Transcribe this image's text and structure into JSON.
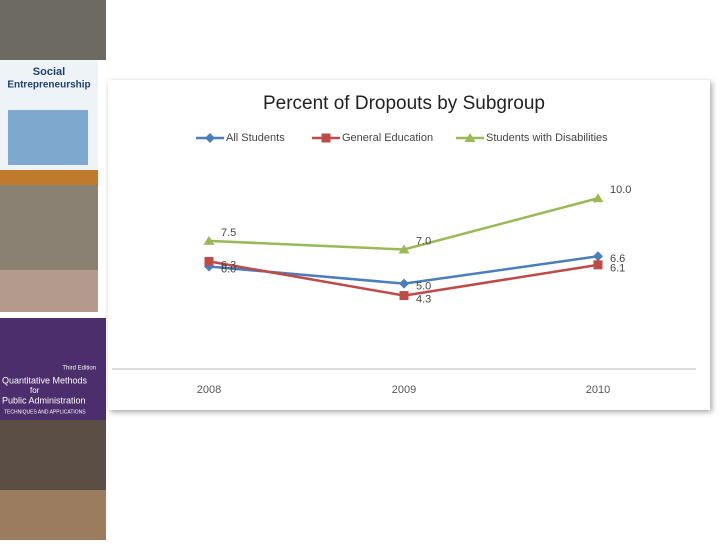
{
  "sidebar": {
    "cover1": {
      "title_line1": "Social",
      "title_line2": "Entrepreneurship"
    },
    "cover2": {
      "edition": "Third Edition",
      "title_line1": "Quantitative Methods",
      "title_line2": "for",
      "title_line3": "Public Administration",
      "subtitle": "TECHNIQUES AND APPLICATIONS"
    }
  },
  "chart_data": {
    "type": "line",
    "title": "Percent of Dropouts by Subgroup",
    "categories": [
      "2008",
      "2009",
      "2010"
    ],
    "ylim": [
      0,
      13
    ],
    "series": [
      {
        "name": "All Students",
        "color": "#4a7ebb",
        "marker": "diamond",
        "values": [
          6.0,
          5.0,
          6.6
        ],
        "value_labels": [
          "6.0",
          "5.0",
          "6.6"
        ]
      },
      {
        "name": "General Education",
        "color": "#be4b48",
        "marker": "square",
        "values": [
          6.3,
          4.3,
          6.1
        ],
        "value_labels": [
          "6.3",
          "4.3",
          "6.1"
        ]
      },
      {
        "name": "Students with Disabilities",
        "color": "#98b954",
        "marker": "triangle",
        "values": [
          7.5,
          7.0,
          10.0
        ],
        "value_labels": [
          "7.5",
          "7.0",
          "10.0"
        ]
      }
    ],
    "legend": "top"
  }
}
